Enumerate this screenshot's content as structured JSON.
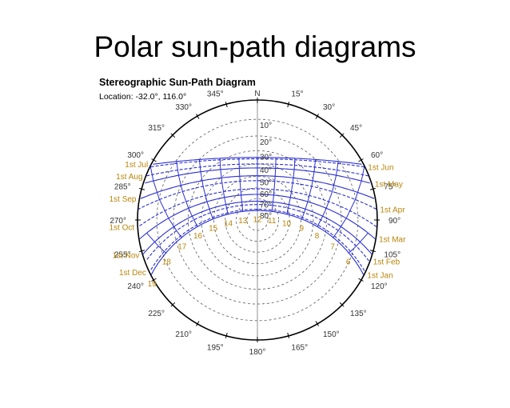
{
  "slide": {
    "title": "Polar sun-path diagrams"
  },
  "diagram": {
    "title": "Stereographic Sun-Path Diagram",
    "location": "Location: -32.0°, 116.0°",
    "north_label": "N",
    "colors": {
      "sun_path": "#2a2fd0",
      "date_label": "#b8860b",
      "grid": "#444444"
    },
    "azimuth_labels": [
      {
        "az": 15,
        "text": "15°"
      },
      {
        "az": 30,
        "text": "30°"
      },
      {
        "az": 45,
        "text": "45°"
      },
      {
        "az": 60,
        "text": "60°"
      },
      {
        "az": 75,
        "text": "75°"
      },
      {
        "az": 90,
        "text": "90°"
      },
      {
        "az": 105,
        "text": "105°"
      },
      {
        "az": 120,
        "text": "120°"
      },
      {
        "az": 135,
        "text": "135°"
      },
      {
        "az": 150,
        "text": "150°"
      },
      {
        "az": 165,
        "text": "165°"
      },
      {
        "az": 180,
        "text": "180°"
      },
      {
        "az": 195,
        "text": "195°"
      },
      {
        "az": 210,
        "text": "210°"
      },
      {
        "az": 225,
        "text": "225°"
      },
      {
        "az": 240,
        "text": "240°"
      },
      {
        "az": 255,
        "text": "255°"
      },
      {
        "az": 270,
        "text": "270°"
      },
      {
        "az": 285,
        "text": "285°"
      },
      {
        "az": 300,
        "text": "300°"
      },
      {
        "az": 315,
        "text": "315°"
      },
      {
        "az": 330,
        "text": "330°"
      },
      {
        "az": 345,
        "text": "345°"
      }
    ],
    "altitude_labels": [
      "10°",
      "20°",
      "30°",
      "40°",
      "50°",
      "60°",
      "70°",
      "80°"
    ],
    "date_labels_left": [
      "1st Jul",
      "1st Aug",
      "1st Sep",
      "1st Oct",
      "1st Nov",
      "1st Dec"
    ],
    "date_labels_right": [
      "1st Jun",
      "1st May",
      "1st Apr",
      "1st Mar",
      "1st Feb",
      "1st Jan"
    ],
    "hour_labels": [
      "6",
      "7",
      "8",
      "9",
      "10",
      "11",
      "12",
      "13",
      "14",
      "15",
      "16",
      "17",
      "18",
      "19"
    ],
    "sun_paths": [
      {
        "date": "1st Jan",
        "declination": -23.0
      },
      {
        "date": "1st Feb",
        "declination": -17.3
      },
      {
        "date": "1st Mar",
        "declination": -7.9
      },
      {
        "date": "1st Apr",
        "declination": 4.3
      },
      {
        "date": "1st May",
        "declination": 14.9
      },
      {
        "date": "1st Jun",
        "declination": 22.0
      },
      {
        "date": "1st Jul",
        "declination": 23.1
      },
      {
        "date": "1st Aug",
        "declination": 18.1
      },
      {
        "date": "1st Sep",
        "declination": 8.5
      },
      {
        "date": "1st Oct",
        "declination": -2.9
      },
      {
        "date": "1st Nov",
        "declination": -14.2
      },
      {
        "date": "1st Dec",
        "declination": -21.7
      }
    ]
  }
}
